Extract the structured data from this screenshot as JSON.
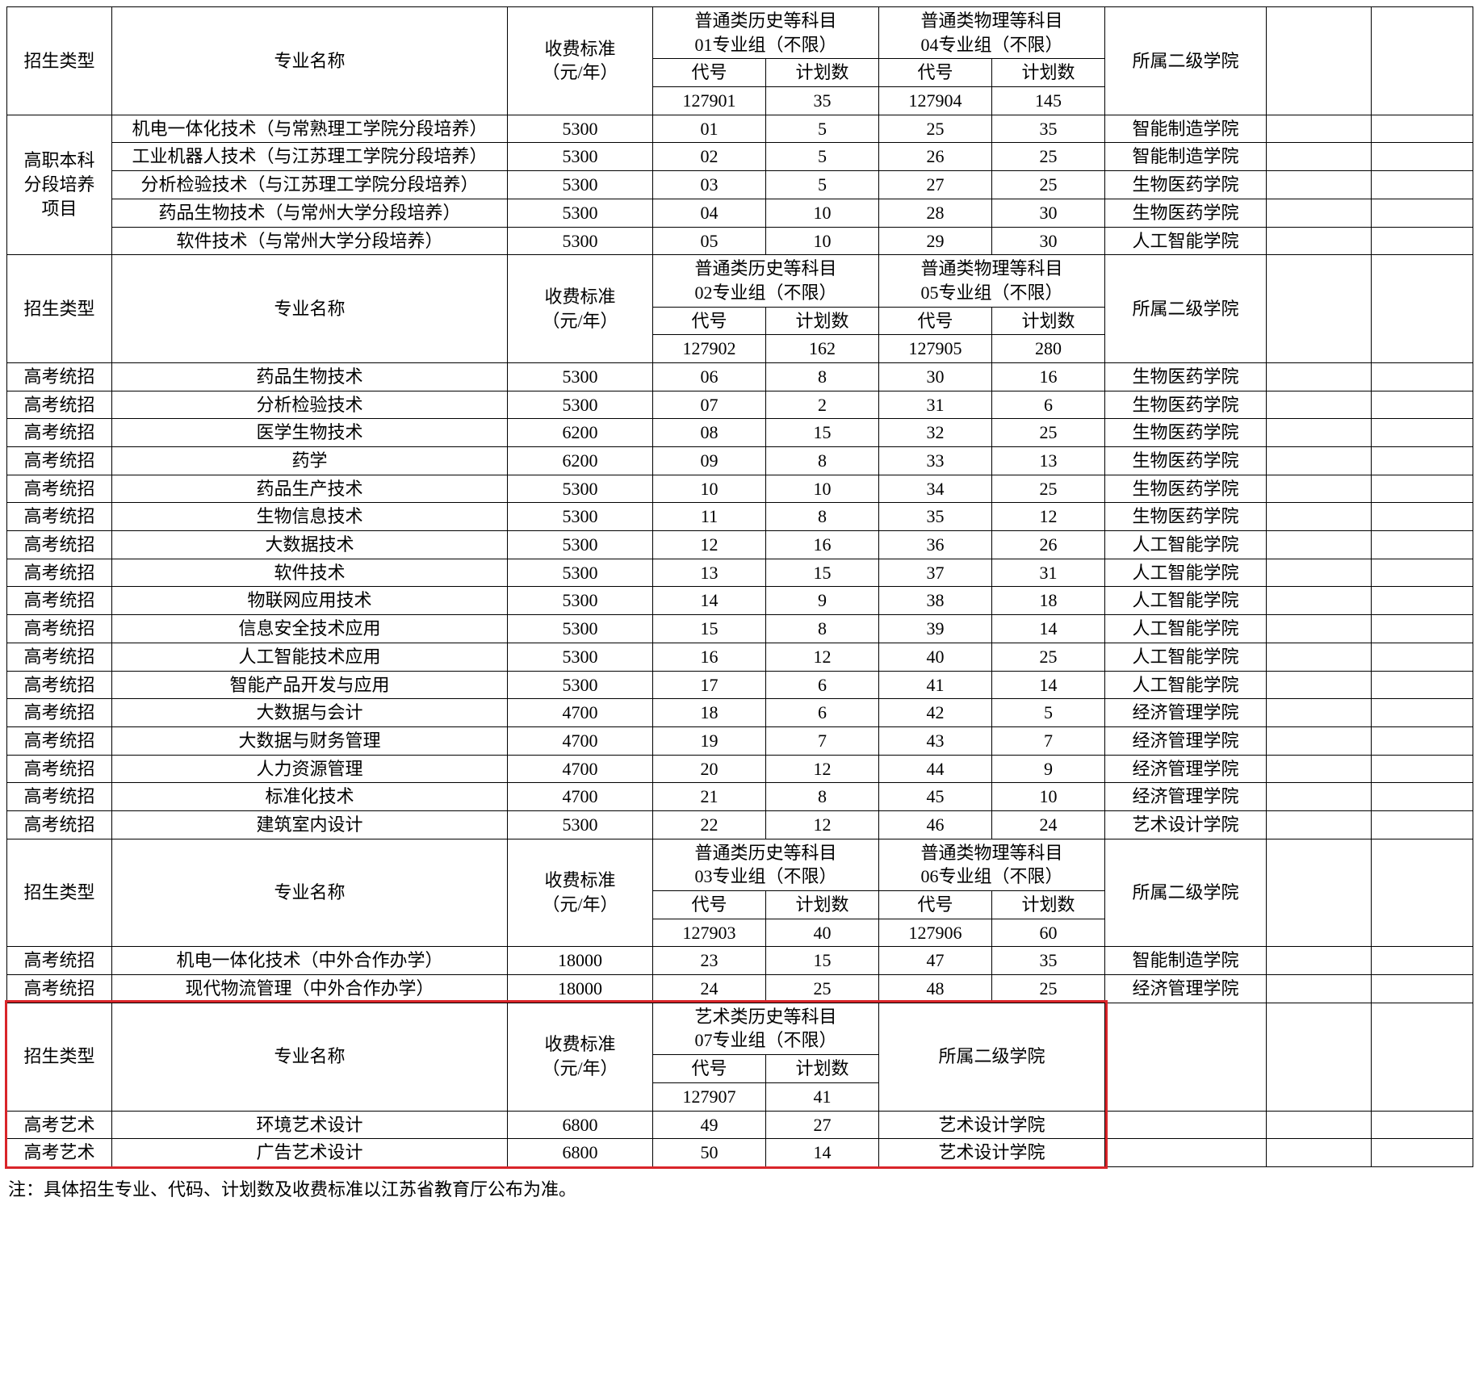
{
  "colors": {
    "border": "#000000",
    "background": "#ffffff",
    "text": "#000000",
    "highlight_border": "#d9252a"
  },
  "typography": {
    "font_family": "SimSun",
    "base_fontsize_pt": 16
  },
  "col_headers": {
    "type": "招生类型",
    "major": "专业名称",
    "fee": "收费标准\n（元/年）",
    "group_hist_01": "普通类历史等科目\n01专业组（不限）",
    "group_phys_04": "普通类物理等科目\n04专业组（不限）",
    "group_hist_02": "普通类历史等科目\n02专业组（不限）",
    "group_phys_05": "普通类物理等科目\n05专业组（不限）",
    "group_hist_03": "普通类历史等科目\n03专业组（不限）",
    "group_phys_06": "普通类物理等科目\n06专业组（不限）",
    "group_art_07": "艺术类历史等科目\n07专业组（不限）",
    "code": "代号",
    "plan": "计划数",
    "school": "所属二级学院"
  },
  "section1": {
    "group_code_row": {
      "c1": "127901",
      "p1": "35",
      "c2": "127904",
      "p2": "145"
    },
    "type_label": "高职本科\n分段培养\n项目",
    "rows": [
      {
        "major": "机电一体化技术（与常熟理工学院分段培养）",
        "fee": "5300",
        "c1": "01",
        "p1": "5",
        "c2": "25",
        "p2": "35",
        "school": "智能制造学院"
      },
      {
        "major": "工业机器人技术（与江苏理工学院分段培养）",
        "fee": "5300",
        "c1": "02",
        "p1": "5",
        "c2": "26",
        "p2": "25",
        "school": "智能制造学院"
      },
      {
        "major": "分析检验技术（与江苏理工学院分段培养）",
        "fee": "5300",
        "c1": "03",
        "p1": "5",
        "c2": "27",
        "p2": "25",
        "school": "生物医药学院"
      },
      {
        "major": "药品生物技术（与常州大学分段培养）",
        "fee": "5300",
        "c1": "04",
        "p1": "10",
        "c2": "28",
        "p2": "30",
        "school": "生物医药学院"
      },
      {
        "major": "软件技术（与常州大学分段培养）",
        "fee": "5300",
        "c1": "05",
        "p1": "10",
        "c2": "29",
        "p2": "30",
        "school": "人工智能学院"
      }
    ]
  },
  "section2": {
    "group_code_row": {
      "c1": "127902",
      "p1": "162",
      "c2": "127905",
      "p2": "280"
    },
    "type_label": "高考统招",
    "rows": [
      {
        "major": "药品生物技术",
        "fee": "5300",
        "c1": "06",
        "p1": "8",
        "c2": "30",
        "p2": "16",
        "school": "生物医药学院"
      },
      {
        "major": "分析检验技术",
        "fee": "5300",
        "c1": "07",
        "p1": "2",
        "c2": "31",
        "p2": "6",
        "school": "生物医药学院"
      },
      {
        "major": "医学生物技术",
        "fee": "6200",
        "c1": "08",
        "p1": "15",
        "c2": "32",
        "p2": "25",
        "school": "生物医药学院"
      },
      {
        "major": "药学",
        "fee": "6200",
        "c1": "09",
        "p1": "8",
        "c2": "33",
        "p2": "13",
        "school": "生物医药学院"
      },
      {
        "major": "药品生产技术",
        "fee": "5300",
        "c1": "10",
        "p1": "10",
        "c2": "34",
        "p2": "25",
        "school": "生物医药学院"
      },
      {
        "major": "生物信息技术",
        "fee": "5300",
        "c1": "11",
        "p1": "8",
        "c2": "35",
        "p2": "12",
        "school": "生物医药学院"
      },
      {
        "major": "大数据技术",
        "fee": "5300",
        "c1": "12",
        "p1": "16",
        "c2": "36",
        "p2": "26",
        "school": "人工智能学院"
      },
      {
        "major": "软件技术",
        "fee": "5300",
        "c1": "13",
        "p1": "15",
        "c2": "37",
        "p2": "31",
        "school": "人工智能学院"
      },
      {
        "major": "物联网应用技术",
        "fee": "5300",
        "c1": "14",
        "p1": "9",
        "c2": "38",
        "p2": "18",
        "school": "人工智能学院"
      },
      {
        "major": "信息安全技术应用",
        "fee": "5300",
        "c1": "15",
        "p1": "8",
        "c2": "39",
        "p2": "14",
        "school": "人工智能学院"
      },
      {
        "major": "人工智能技术应用",
        "fee": "5300",
        "c1": "16",
        "p1": "12",
        "c2": "40",
        "p2": "25",
        "school": "人工智能学院"
      },
      {
        "major": "智能产品开发与应用",
        "fee": "5300",
        "c1": "17",
        "p1": "6",
        "c2": "41",
        "p2": "14",
        "school": "人工智能学院"
      },
      {
        "major": "大数据与会计",
        "fee": "4700",
        "c1": "18",
        "p1": "6",
        "c2": "42",
        "p2": "5",
        "school": "经济管理学院"
      },
      {
        "major": "大数据与财务管理",
        "fee": "4700",
        "c1": "19",
        "p1": "7",
        "c2": "43",
        "p2": "7",
        "school": "经济管理学院"
      },
      {
        "major": "人力资源管理",
        "fee": "4700",
        "c1": "20",
        "p1": "12",
        "c2": "44",
        "p2": "9",
        "school": "经济管理学院"
      },
      {
        "major": "标准化技术",
        "fee": "4700",
        "c1": "21",
        "p1": "8",
        "c2": "45",
        "p2": "10",
        "school": "经济管理学院"
      },
      {
        "major": "建筑室内设计",
        "fee": "5300",
        "c1": "22",
        "p1": "12",
        "c2": "46",
        "p2": "24",
        "school": "艺术设计学院"
      }
    ]
  },
  "section3": {
    "group_code_row": {
      "c1": "127903",
      "p1": "40",
      "c2": "127906",
      "p2": "60"
    },
    "type_label": "高考统招",
    "rows": [
      {
        "major": "机电一体化技术（中外合作办学）",
        "fee": "18000",
        "c1": "23",
        "p1": "15",
        "c2": "47",
        "p2": "35",
        "school": "智能制造学院"
      },
      {
        "major": "现代物流管理（中外合作办学）",
        "fee": "18000",
        "c1": "24",
        "p1": "25",
        "c2": "48",
        "p2": "25",
        "school": "经济管理学院"
      }
    ]
  },
  "section4": {
    "group_code_row": {
      "c1": "127907",
      "p1": "41"
    },
    "type_label": "高考艺术",
    "rows": [
      {
        "major": "环境艺术设计",
        "fee": "6800",
        "c1": "49",
        "p1": "27",
        "school": "艺术设计学院"
      },
      {
        "major": "广告艺术设计",
        "fee": "6800",
        "c1": "50",
        "p1": "14",
        "school": "艺术设计学院"
      }
    ]
  },
  "footnote": "注：具体招生专业、代码、计划数及收费标准以江苏省教育厅公布为准。"
}
